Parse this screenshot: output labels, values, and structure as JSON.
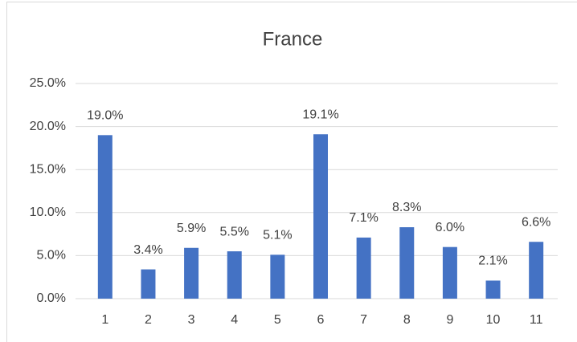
{
  "chart_data": {
    "type": "bar",
    "title": "France",
    "categories": [
      "1",
      "2",
      "3",
      "4",
      "5",
      "6",
      "7",
      "8",
      "9",
      "10",
      "11"
    ],
    "values": [
      19.0,
      3.4,
      5.9,
      5.5,
      5.1,
      19.1,
      7.1,
      8.3,
      6.0,
      2.1,
      6.6
    ],
    "value_labels": [
      "19.0%",
      "3.4%",
      "5.9%",
      "5.5%",
      "5.1%",
      "19.1%",
      "7.1%",
      "8.3%",
      "6.0%",
      "2.1%",
      "6.6%"
    ],
    "color": "#4472c4",
    "ylim": [
      0,
      25
    ],
    "yticks": [
      {
        "value": 0,
        "label": "0.0%"
      },
      {
        "value": 5,
        "label": "5.0%"
      },
      {
        "value": 10,
        "label": "10.0%"
      },
      {
        "value": 15,
        "label": "15.0%"
      },
      {
        "value": 20,
        "label": "20.0%"
      },
      {
        "value": 25,
        "label": "25.0%"
      }
    ],
    "grid": true
  }
}
